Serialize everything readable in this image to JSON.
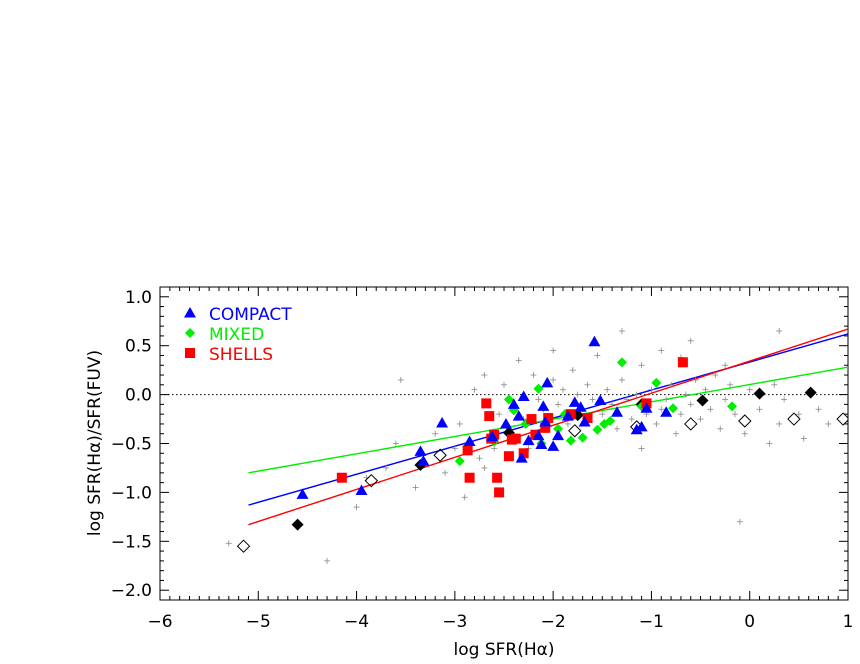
{
  "chart_data": {
    "type": "scatter",
    "xlabel": "log SFR(Hα)",
    "ylabel": "log SFR(Hα)/SFR(FUV)",
    "xlim": [
      -6,
      1
    ],
    "ylim": [
      -2.1,
      1.1
    ],
    "x_ticks": [
      -6,
      -5,
      -4,
      -3,
      -2,
      -1,
      0,
      1
    ],
    "x_tick_labels": [
      "−6",
      "−5",
      "−4",
      "−3",
      "−2",
      "−1",
      "0",
      "1"
    ],
    "y_ticks": [
      -2.0,
      -1.5,
      -1.0,
      -0.5,
      0.0,
      0.5,
      1.0
    ],
    "y_tick_labels": [
      "−2.0",
      "−1.5",
      "−1.0",
      "−0.5",
      "0.0",
      "0.5",
      "1.0"
    ],
    "reference_line": {
      "y": 0.0,
      "style": "dotted",
      "color": "#000000"
    },
    "legend": {
      "placement": "top-left",
      "entries": [
        {
          "label": "COMPACT",
          "marker": "triangle",
          "color": "#0000ff"
        },
        {
          "label": "MIXED",
          "marker": "diamond",
          "color": "#00ee00"
        },
        {
          "label": "SHELLS",
          "marker": "square",
          "color": "#ff0000"
        }
      ]
    },
    "series": [
      {
        "name": "COMPACT",
        "marker": "triangle",
        "color": "#0000ff",
        "points": [
          [
            -4.55,
            -1.02
          ],
          [
            -3.95,
            -0.98
          ],
          [
            -3.35,
            -0.58
          ],
          [
            -3.32,
            -0.68
          ],
          [
            -3.13,
            -0.29
          ],
          [
            -2.85,
            -0.48
          ],
          [
            -2.62,
            -0.43
          ],
          [
            -2.48,
            -0.3
          ],
          [
            -2.4,
            -0.1
          ],
          [
            -2.35,
            -0.22
          ],
          [
            -2.32,
            -0.65
          ],
          [
            -2.3,
            -0.02
          ],
          [
            -2.25,
            -0.47
          ],
          [
            -2.15,
            -0.42
          ],
          [
            -2.12,
            -0.51
          ],
          [
            -2.1,
            -0.12
          ],
          [
            -2.08,
            -0.28
          ],
          [
            -2.06,
            0.12
          ],
          [
            -2.0,
            -0.53
          ],
          [
            -1.95,
            -0.42
          ],
          [
            -1.85,
            -0.22
          ],
          [
            -1.78,
            -0.08
          ],
          [
            -1.72,
            -0.13
          ],
          [
            -1.68,
            -0.28
          ],
          [
            -1.58,
            0.54
          ],
          [
            -1.52,
            -0.06
          ],
          [
            -1.35,
            -0.18
          ],
          [
            -1.15,
            -0.36
          ],
          [
            -1.1,
            -0.33
          ],
          [
            -1.05,
            -0.14
          ],
          [
            -0.85,
            -0.18
          ]
        ]
      },
      {
        "name": "MIXED",
        "marker": "diamond",
        "color": "#00ee00",
        "points": [
          [
            -2.95,
            -0.68
          ],
          [
            -2.6,
            -0.48
          ],
          [
            -2.45,
            -0.05
          ],
          [
            -2.4,
            -0.16
          ],
          [
            -2.28,
            -0.3
          ],
          [
            -2.15,
            0.06
          ],
          [
            -2.12,
            -0.5
          ],
          [
            -1.95,
            -0.35
          ],
          [
            -1.88,
            -0.2
          ],
          [
            -1.82,
            -0.47
          ],
          [
            -1.7,
            -0.44
          ],
          [
            -1.55,
            -0.36
          ],
          [
            -1.48,
            -0.3
          ],
          [
            -1.42,
            -0.27
          ],
          [
            -1.3,
            0.33
          ],
          [
            -1.1,
            -0.12
          ],
          [
            -0.95,
            0.12
          ],
          [
            -0.78,
            -0.14
          ],
          [
            -0.18,
            -0.12
          ]
        ]
      },
      {
        "name": "SHELLS",
        "marker": "square",
        "color": "#ff0000",
        "points": [
          [
            -4.15,
            -0.85
          ],
          [
            -2.87,
            -0.57
          ],
          [
            -2.85,
            -0.85
          ],
          [
            -2.68,
            -0.09
          ],
          [
            -2.65,
            -0.22
          ],
          [
            -2.63,
            -0.45
          ],
          [
            -2.6,
            -0.41
          ],
          [
            -2.57,
            -0.85
          ],
          [
            -2.55,
            -1.0
          ],
          [
            -2.45,
            -0.63
          ],
          [
            -2.42,
            -0.46
          ],
          [
            -2.38,
            -0.45
          ],
          [
            -2.3,
            -0.6
          ],
          [
            -2.22,
            -0.25
          ],
          [
            -2.18,
            -0.41
          ],
          [
            -2.08,
            -0.34
          ],
          [
            -2.05,
            -0.24
          ],
          [
            -1.82,
            -0.2
          ],
          [
            -1.65,
            -0.24
          ],
          [
            -1.05,
            -0.09
          ],
          [
            -0.68,
            0.33
          ]
        ]
      },
      {
        "name": "",
        "marker": "diamond-filled",
        "color": "#000000",
        "points": [
          [
            -4.6,
            -1.33
          ],
          [
            -3.35,
            -0.72
          ],
          [
            -2.45,
            -0.39
          ],
          [
            -1.75,
            -0.21
          ],
          [
            -1.1,
            -0.1
          ],
          [
            -0.48,
            -0.06
          ],
          [
            0.1,
            0.01
          ],
          [
            0.62,
            0.02
          ]
        ]
      },
      {
        "name": "",
        "marker": "diamond-open",
        "color": "#000000",
        "points": [
          [
            -5.15,
            -1.55
          ],
          [
            -3.85,
            -0.88
          ],
          [
            -3.15,
            -0.62
          ],
          [
            -1.78,
            -0.37
          ],
          [
            -1.15,
            -0.33
          ],
          [
            -0.6,
            -0.3
          ],
          [
            -0.05,
            -0.27
          ],
          [
            0.45,
            -0.25
          ],
          [
            0.95,
            -0.25
          ]
        ]
      },
      {
        "name": "",
        "marker": "plus",
        "color": "#888888",
        "points": [
          [
            -5.3,
            -1.52
          ],
          [
            -4.3,
            -1.7
          ],
          [
            -4.0,
            -1.15
          ],
          [
            -3.9,
            -0.85
          ],
          [
            -3.7,
            -0.75
          ],
          [
            -3.6,
            -0.5
          ],
          [
            -3.55,
            0.15
          ],
          [
            -3.4,
            -0.95
          ],
          [
            -3.2,
            -0.4
          ],
          [
            -3.1,
            -0.8
          ],
          [
            -3.0,
            -0.55
          ],
          [
            -2.95,
            -0.3
          ],
          [
            -2.9,
            -1.05
          ],
          [
            -2.8,
            0.05
          ],
          [
            -2.75,
            -0.65
          ],
          [
            -2.7,
            -0.75
          ],
          [
            -2.6,
            -0.55
          ],
          [
            -2.55,
            -0.2
          ],
          [
            -2.5,
            0.1
          ],
          [
            -2.45,
            -0.35
          ],
          [
            -2.35,
            0.35
          ],
          [
            -2.3,
            -0.25
          ],
          [
            -2.25,
            -0.55
          ],
          [
            -2.2,
            0.2
          ],
          [
            -2.15,
            -0.05
          ],
          [
            -2.1,
            -0.15
          ],
          [
            -2.0,
            0.15
          ],
          [
            -1.95,
            -0.1
          ],
          [
            -1.9,
            0.05
          ],
          [
            -1.85,
            -0.3
          ],
          [
            -1.8,
            0.25
          ],
          [
            -1.75,
            0.0
          ],
          [
            -1.7,
            -0.15
          ],
          [
            -1.65,
            0.1
          ],
          [
            -1.6,
            -0.05
          ],
          [
            -1.5,
            -0.2
          ],
          [
            -1.45,
            0.05
          ],
          [
            -1.4,
            -0.1
          ],
          [
            -1.35,
            -0.35
          ],
          [
            -1.3,
            0.15
          ],
          [
            -1.25,
            -0.05
          ],
          [
            -1.2,
            -0.25
          ],
          [
            -1.15,
            0.0
          ],
          [
            -1.1,
            -0.55
          ],
          [
            -1.05,
            -0.2
          ],
          [
            -1.0,
            0.05
          ],
          [
            -0.95,
            -0.3
          ],
          [
            -0.9,
            -0.15
          ],
          [
            -0.85,
            -0.05
          ],
          [
            -0.8,
            0.1
          ],
          [
            -0.75,
            -0.4
          ],
          [
            -0.7,
            -0.2
          ],
          [
            -0.65,
            0.0
          ],
          [
            -0.6,
            -0.1
          ],
          [
            -0.55,
            0.15
          ],
          [
            -0.5,
            -0.25
          ],
          [
            -0.45,
            0.05
          ],
          [
            -0.4,
            -0.15
          ],
          [
            -0.35,
            0.2
          ],
          [
            -0.3,
            -0.35
          ],
          [
            -0.25,
            -0.05
          ],
          [
            -0.2,
            0.1
          ],
          [
            -0.15,
            -0.2
          ],
          [
            -0.1,
            -1.3
          ],
          [
            -0.05,
            -0.4
          ],
          [
            0.0,
            0.05
          ],
          [
            0.1,
            -0.15
          ],
          [
            0.2,
            -0.5
          ],
          [
            0.25,
            0.1
          ],
          [
            0.3,
            -0.3
          ],
          [
            0.35,
            -0.05
          ],
          [
            0.5,
            -0.2
          ],
          [
            0.55,
            -0.45
          ],
          [
            0.7,
            -0.15
          ],
          [
            0.8,
            -0.3
          ],
          [
            -1.3,
            0.65
          ],
          [
            -0.6,
            0.55
          ],
          [
            0.3,
            0.65
          ],
          [
            -2.0,
            0.45
          ],
          [
            -1.1,
            0.3
          ],
          [
            -0.25,
            0.3
          ],
          [
            -0.9,
            0.45
          ],
          [
            -2.7,
            0.2
          ],
          [
            -1.55,
            0.4
          ],
          [
            -0.7,
            0.38
          ]
        ]
      }
    ],
    "fit_lines": [
      {
        "name": "COMPACT fit",
        "color": "#0000ff",
        "x": [
          -5.1,
          1.0
        ],
        "y": [
          -1.13,
          0.62
        ]
      },
      {
        "name": "MIXED fit",
        "color": "#00ee00",
        "x": [
          -5.1,
          1.0
        ],
        "y": [
          -0.8,
          0.28
        ]
      },
      {
        "name": "SHELLS fit",
        "color": "#ff0000",
        "x": [
          -5.1,
          1.0
        ],
        "y": [
          -1.33,
          0.67
        ]
      }
    ]
  }
}
